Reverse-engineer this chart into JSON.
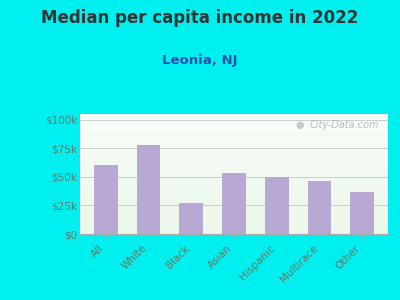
{
  "title": "Median per capita income in 2022",
  "subtitle": "Leonia, NJ",
  "categories": [
    "All",
    "White",
    "Black",
    "Asian",
    "Hispanic",
    "Multirace",
    "Other"
  ],
  "values": [
    60000,
    78000,
    27000,
    53000,
    50000,
    46000,
    37000
  ],
  "bar_color": "#b8a8d4",
  "background_outer": "#00f0f0",
  "title_color": "#333333",
  "subtitle_color": "#2255aa",
  "axis_label_color": "#667766",
  "ytick_labels": [
    "$0",
    "$25k",
    "$50k",
    "$75k",
    "$100k"
  ],
  "ytick_values": [
    0,
    25000,
    50000,
    75000,
    100000
  ],
  "ylim": [
    0,
    105000
  ],
  "watermark": "City-Data.com",
  "title_fontsize": 12,
  "subtitle_fontsize": 9.5,
  "tick_fontsize": 7.5
}
